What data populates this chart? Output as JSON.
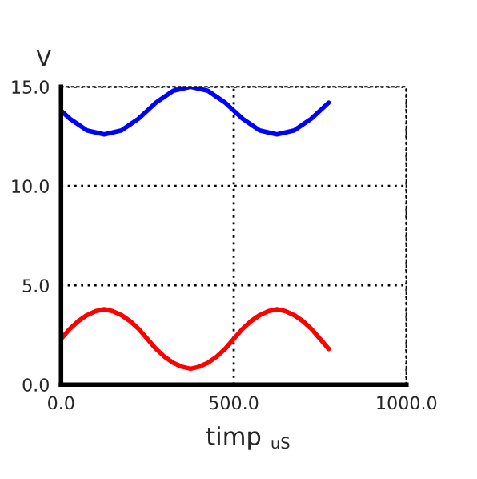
{
  "chart_data": {
    "type": "line",
    "ylabel": "V",
    "xlabel": "timp",
    "annotations": [
      "uS"
    ],
    "x": [
      0,
      25,
      50,
      75,
      100,
      125,
      150,
      175,
      200,
      225,
      250,
      275,
      300,
      325,
      350,
      375,
      400,
      425,
      450,
      475,
      500,
      525,
      550,
      575,
      600,
      625,
      650,
      675,
      700,
      725,
      750,
      775
    ],
    "series": [
      {
        "color": "#0000ff",
        "values": [
          13.8,
          13.4,
          13.1,
          12.8,
          12.7,
          12.6,
          12.7,
          12.8,
          13.1,
          13.4,
          13.8,
          14.2,
          14.5,
          14.8,
          14.9,
          15.0,
          14.9,
          14.8,
          14.5,
          14.2,
          13.8,
          13.4,
          13.1,
          12.8,
          12.7,
          12.6,
          12.7,
          12.8,
          13.1,
          13.4,
          13.8,
          14.2
        ]
      },
      {
        "color": "#ff0000",
        "values": [
          2.3,
          2.8,
          3.2,
          3.5,
          3.7,
          3.8,
          3.7,
          3.5,
          3.2,
          2.8,
          2.3,
          1.8,
          1.4,
          1.1,
          0.9,
          0.8,
          0.9,
          1.1,
          1.4,
          1.8,
          2.3,
          2.8,
          3.2,
          3.5,
          3.7,
          3.8,
          3.7,
          3.5,
          3.2,
          2.8,
          2.3,
          1.8
        ]
      }
    ],
    "xlim": [
      0,
      1000
    ],
    "xticks": [
      {
        "value": 0,
        "label": "0.0"
      },
      {
        "value": 500,
        "label": "500.0"
      },
      {
        "value": 1000,
        "label": "1000.0"
      }
    ],
    "ylim": [
      0,
      15
    ],
    "yticks": [
      {
        "value": 0,
        "label": "0.0"
      },
      {
        "value": 5,
        "label": "5.0"
      },
      {
        "value": 10,
        "label": "10.0"
      },
      {
        "value": 15,
        "label": "15.0"
      }
    ],
    "grid": true,
    "marker": "none",
    "line_style": "solid"
  }
}
